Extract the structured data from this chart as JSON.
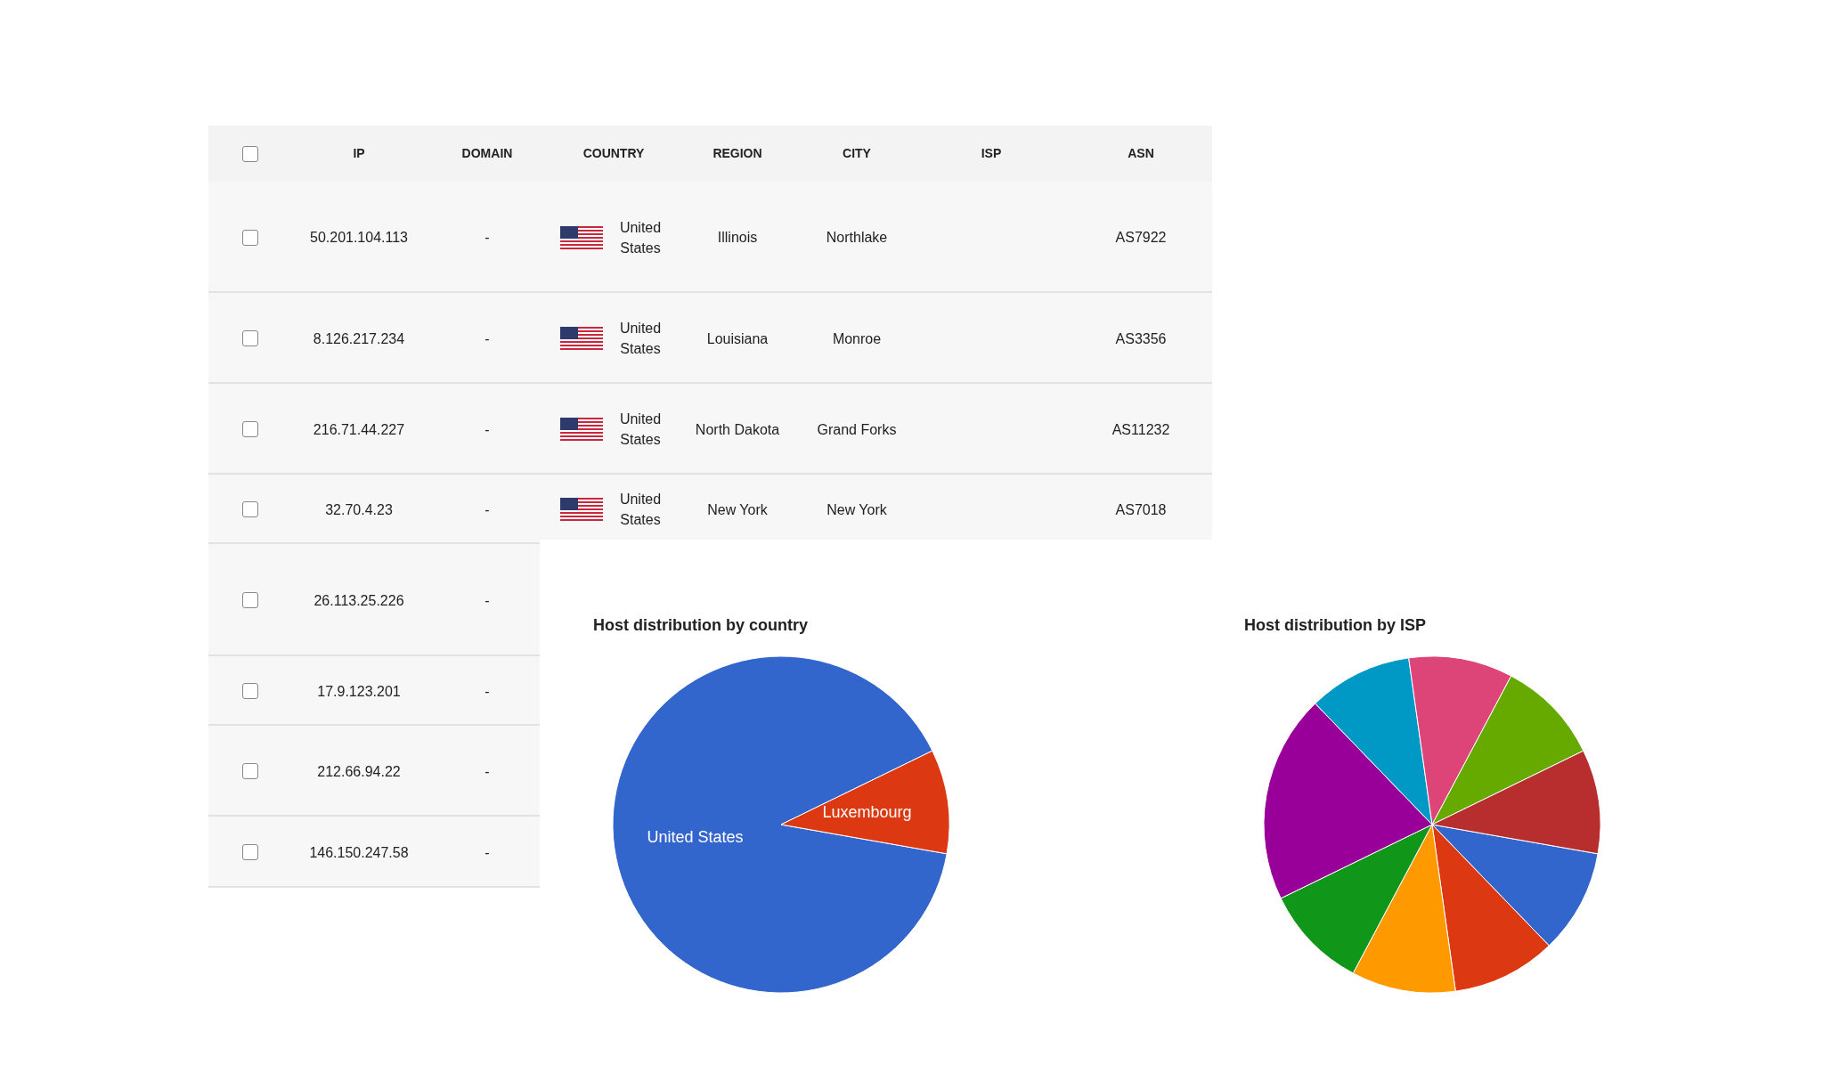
{
  "chart_data": [
    {
      "type": "other",
      "categories": [
        null,
        "IP",
        "DOMAIN",
        "COUNTRY",
        "REGION",
        "CITY",
        "ISP",
        "ASN"
      ],
      "cells": [
        [
          null,
          "50.201.104.113",
          "-",
          "United States",
          "Illinois",
          "Northlake",
          null,
          "AS7922"
        ],
        [
          null,
          "8.126.217.234",
          "-",
          "United States",
          "Louisiana",
          "Monroe",
          null,
          "AS3356"
        ],
        [
          null,
          "216.71.44.227",
          "-",
          "United States",
          "North Dakota",
          "Grand Forks",
          null,
          "AS11232"
        ],
        [
          null,
          "32.70.4.23",
          "-",
          "United States",
          "New York",
          "New York",
          null,
          "AS7018"
        ],
        [
          null,
          "26.113.25.226",
          "-",
          null,
          null,
          null,
          null,
          null
        ],
        [
          null,
          "17.9.123.201",
          "-",
          null,
          null,
          null,
          null,
          null
        ],
        [
          null,
          "212.66.94.22",
          "-",
          null,
          null,
          null,
          null,
          null
        ],
        [
          null,
          "146.150.247.58",
          "-",
          null,
          null,
          null,
          null,
          null
        ]
      ]
    },
    {
      "type": "pie",
      "title": "Host distribution by country",
      "categories": [
        "United States",
        "Luxembourg"
      ],
      "values": [
        90,
        10
      ],
      "colors": [
        "#3366cc",
        "#dc3912"
      ]
    },
    {
      "type": "pie",
      "title": "Host distribution by ISP",
      "categories": [
        null,
        null,
        null,
        null,
        null,
        null,
        null,
        null,
        null
      ],
      "values": [
        10,
        10,
        10,
        10,
        20,
        10,
        10,
        10,
        10
      ],
      "colors": [
        "#3366cc",
        "#dc3912",
        "#ff9900",
        "#109618",
        "#990099",
        "#0099c6",
        "#dd4477",
        "#66aa00",
        "#b82e2e"
      ]
    }
  ]
}
